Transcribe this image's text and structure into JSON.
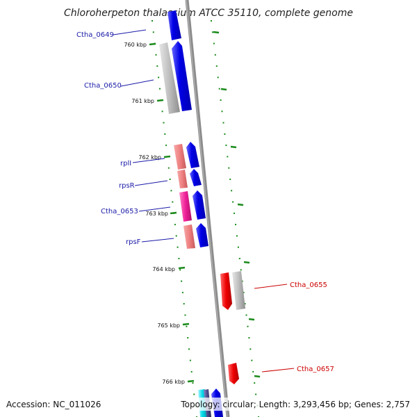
{
  "title": "Chloroherpeton thalassium ATCC 35110, complete genome",
  "footer": {
    "accession": "Accession: NC_011026",
    "summary": "Topology: circular; Length: 3,293,456 bp; Genes: 2,757"
  },
  "ruler": {
    "unit": "kbp",
    "ticks": [
      {
        "label": "760 kbp"
      },
      {
        "label": "761 kbp"
      },
      {
        "label": "762 kbp"
      },
      {
        "label": "763 kbp"
      },
      {
        "label": "764 kbp"
      },
      {
        "label": "765 kbp"
      },
      {
        "label": "766 kbp"
      }
    ]
  },
  "gene_labels": {
    "left_strand": [
      "Ctha_0649",
      "Ctha_0650",
      "rplI",
      "rpsR",
      "Ctha_0653",
      "rpsF"
    ],
    "right_strand": [
      "Ctha_0655",
      "Ctha_0657"
    ]
  },
  "colors": {
    "backbone": "#8c8c8c",
    "tick_green": "#1a8a1a",
    "cds_blue": "#0000e6",
    "gene_gray": "#bdbdbd",
    "rrna_pink": "#ee7f7f",
    "magenta": "#ee1f97",
    "cds_red": "#ee0000",
    "cyan": "#00d8e8",
    "label_left": "#1a1aa8",
    "label_right": "#cc0000"
  }
}
